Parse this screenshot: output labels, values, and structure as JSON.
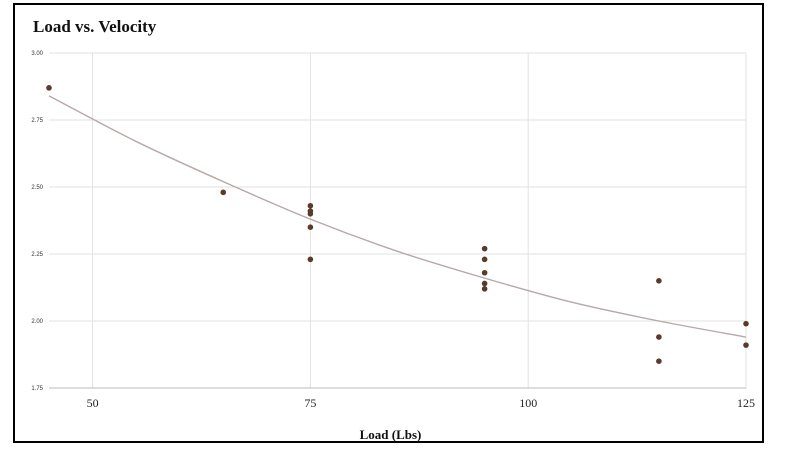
{
  "chart_data": {
    "type": "scatter",
    "title": "Load vs. Velocity",
    "xlabel": "Load (Lbs)",
    "ylabel": "",
    "xlim": [
      45,
      125
    ],
    "ylim": [
      1.75,
      3.0
    ],
    "xticks": [
      50,
      75,
      100,
      125
    ],
    "yticks": [
      1.75,
      2.0,
      2.25,
      2.5,
      2.75,
      3.0
    ],
    "xtick_labels": [
      "50",
      "75",
      "100",
      "125"
    ],
    "ytick_labels": [
      "1.75",
      "2.00",
      "2.25",
      "2.50",
      "2.75",
      "3.00"
    ],
    "grid": true,
    "legend": "none",
    "point_color": "#5a3a2a",
    "trendline_color": "#b8a8a8",
    "grid_color": "#e2e2e2",
    "series": [
      {
        "x": [
          45,
          65,
          75,
          75,
          75,
          75,
          75,
          95,
          95,
          95,
          95,
          95,
          115,
          115,
          115,
          125,
          125
        ],
        "y": [
          2.87,
          2.48,
          2.43,
          2.41,
          2.4,
          2.35,
          2.23,
          2.27,
          2.23,
          2.18,
          2.14,
          2.12,
          2.15,
          1.94,
          1.85,
          1.99,
          1.91
        ]
      }
    ],
    "trendline": {
      "type": "polynomial",
      "x": [
        45,
        55,
        65,
        75,
        85,
        95,
        105,
        115,
        125
      ],
      "y": [
        2.84,
        2.67,
        2.52,
        2.38,
        2.26,
        2.16,
        2.07,
        2.0,
        1.94
      ]
    }
  }
}
